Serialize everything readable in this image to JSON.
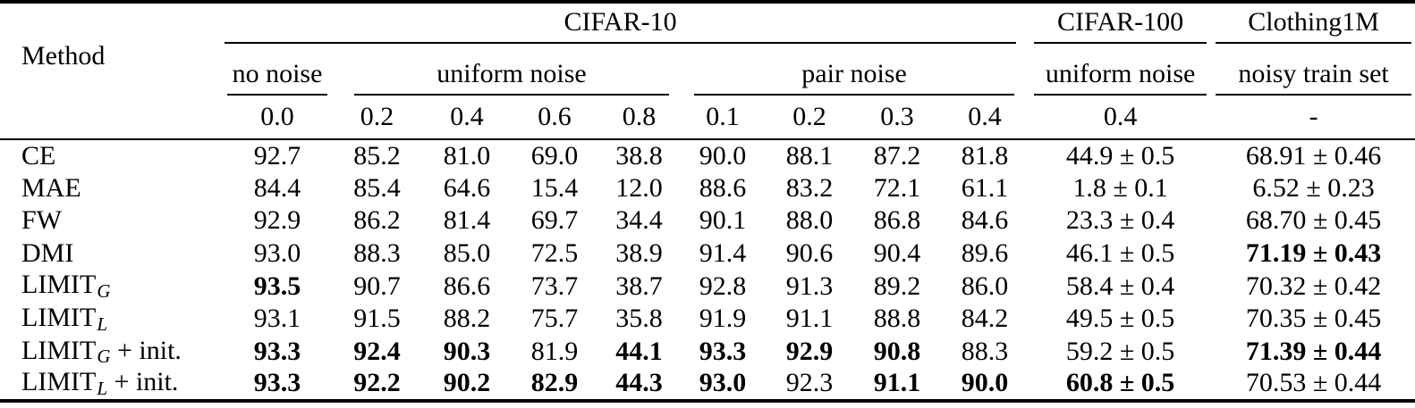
{
  "colors": {
    "text": "#000000",
    "background": "#ffffff",
    "rule": "#000000"
  },
  "table": {
    "header": {
      "method": "Method",
      "datasets": [
        "CIFAR-10",
        "CIFAR-100",
        "Clothing1M"
      ],
      "noise_types": [
        "no noise",
        "uniform noise",
        "pair noise",
        "uniform noise",
        "noisy train set"
      ],
      "noise_levels": [
        "0.0",
        "0.2",
        "0.4",
        "0.6",
        "0.8",
        "0.1",
        "0.2",
        "0.3",
        "0.4",
        "0.4",
        "-"
      ]
    },
    "rows": [
      {
        "method": {
          "base": "CE"
        },
        "values": [
          "92.7",
          "85.2",
          "81.0",
          "69.0",
          "38.8",
          "90.0",
          "88.1",
          "87.2",
          "81.8",
          "44.9 ± 0.5",
          "68.91 ± 0.46"
        ]
      },
      {
        "method": {
          "base": "MAE"
        },
        "values": [
          "84.4",
          "85.4",
          "64.6",
          "15.4",
          "12.0",
          "88.6",
          "83.2",
          "72.1",
          "61.1",
          "1.8 ± 0.1",
          "6.52 ± 0.23"
        ]
      },
      {
        "method": {
          "base": "FW"
        },
        "values": [
          "92.9",
          "86.2",
          "81.4",
          "69.7",
          "34.4",
          "90.1",
          "88.0",
          "86.8",
          "84.6",
          "23.3 ± 0.4",
          "68.70 ± 0.45"
        ]
      },
      {
        "method": {
          "base": "DMI"
        },
        "values": [
          "93.0",
          "88.3",
          "85.0",
          "72.5",
          "38.9",
          "91.4",
          "90.6",
          "90.4",
          "89.6",
          "46.1 ± 0.5",
          {
            "text": "71.19 ± 0.43",
            "bold": true
          }
        ]
      },
      {
        "method": {
          "base": "LIMIT",
          "sub": "G"
        },
        "values": [
          {
            "text": "93.5",
            "bold": true
          },
          "90.7",
          "86.6",
          "73.7",
          "38.7",
          "92.8",
          "91.3",
          "89.2",
          "86.0",
          "58.4 ± 0.4",
          "70.32 ± 0.42"
        ]
      },
      {
        "method": {
          "base": "LIMIT",
          "sub": "L"
        },
        "values": [
          "93.1",
          "91.5",
          "88.2",
          "75.7",
          "35.8",
          "91.9",
          "91.1",
          "88.8",
          "84.2",
          "49.5 ± 0.5",
          "70.35 ± 0.45"
        ]
      },
      {
        "method": {
          "base": "LIMIT",
          "sub": "G",
          "suffix": " + init."
        },
        "values": [
          {
            "text": "93.3",
            "bold": true
          },
          {
            "text": "92.4",
            "bold": true
          },
          {
            "text": "90.3",
            "bold": true
          },
          "81.9",
          {
            "text": "44.1",
            "bold": true
          },
          {
            "text": "93.3",
            "bold": true
          },
          {
            "text": "92.9",
            "bold": true
          },
          {
            "text": "90.8",
            "bold": true
          },
          "88.3",
          "59.2 ± 0.5",
          {
            "text": "71.39 ± 0.44",
            "bold": true
          }
        ]
      },
      {
        "method": {
          "base": "LIMIT",
          "sub": "L",
          "suffix": " + init."
        },
        "values": [
          {
            "text": "93.3",
            "bold": true
          },
          {
            "text": "92.2",
            "bold": true
          },
          {
            "text": "90.2",
            "bold": true
          },
          {
            "text": "82.9",
            "bold": true
          },
          {
            "text": "44.3",
            "bold": true
          },
          {
            "text": "93.0",
            "bold": true
          },
          "92.3",
          {
            "text": "91.1",
            "bold": true
          },
          {
            "text": "90.0",
            "bold": true
          },
          {
            "text": "60.8 ± 0.5",
            "bold": true
          },
          "70.53 ± 0.44"
        ]
      }
    ]
  }
}
